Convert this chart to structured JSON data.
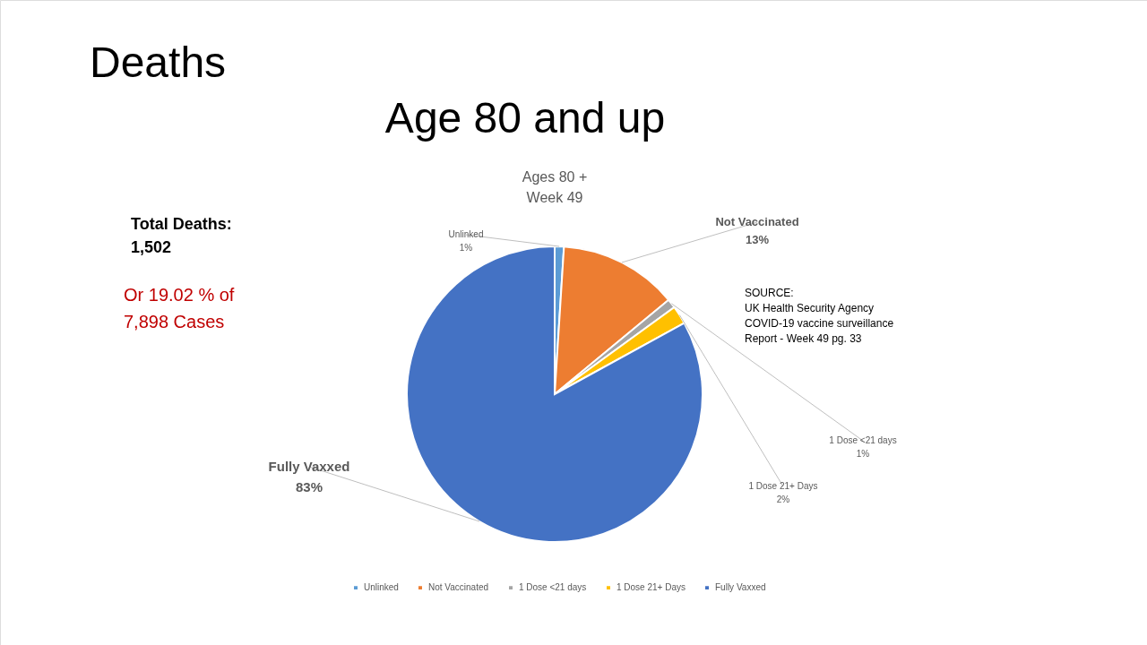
{
  "chart_data": {
    "type": "pie",
    "title": "Ages 80 +\nWeek 49",
    "categories": [
      "Unlinked",
      "Not Vaccinated",
      "1 Dose <21 days",
      "1 Dose 21+ Days",
      "Fully Vaxxed"
    ],
    "values": [
      1,
      13,
      1,
      2,
      83
    ],
    "value_labels": [
      "1%",
      "13%",
      "1%",
      "2%",
      "83%"
    ],
    "colors": [
      "#5b9bd5",
      "#ed7d31",
      "#a5a5a5",
      "#ffc000",
      "#4472c4"
    ],
    "legend": "bottom",
    "annotations": [
      "Deaths",
      "Age 80 and up",
      "Total Deaths:\n1,502",
      "Or 19.02 % of\n7,898 Cases",
      "SOURCE:\n UK Health Security Agency\nCOVID-19 vaccine surveillance\n Report - Week 49   pg. 33"
    ]
  }
}
